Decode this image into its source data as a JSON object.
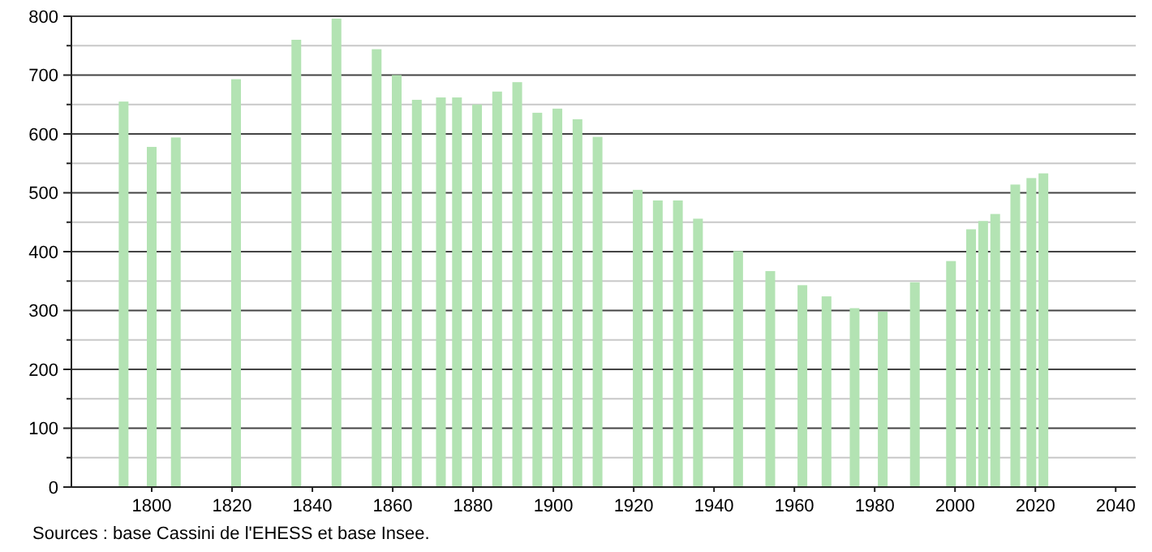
{
  "chart_data": {
    "type": "bar",
    "x": [
      1793,
      1800,
      1806,
      1821,
      1836,
      1846,
      1856,
      1861,
      1866,
      1872,
      1876,
      1881,
      1886,
      1891,
      1896,
      1901,
      1906,
      1911,
      1921,
      1926,
      1931,
      1936,
      1946,
      1954,
      1962,
      1968,
      1975,
      1982,
      1990,
      1999,
      2004,
      2007,
      2010,
      2015,
      2019,
      2022
    ],
    "values": [
      655,
      578,
      594,
      693,
      760,
      796,
      744,
      700,
      658,
      662,
      662,
      650,
      672,
      688,
      636,
      643,
      625,
      595,
      505,
      487,
      487,
      456,
      401,
      367,
      343,
      324,
      304,
      298,
      348,
      384,
      438,
      452,
      464,
      514,
      525,
      533
    ],
    "color": "#b3e3b3",
    "xlim": [
      1780,
      2045
    ],
    "xticks": [
      1800,
      1820,
      1840,
      1860,
      1880,
      1900,
      1920,
      1940,
      1960,
      1980,
      2000,
      2020,
      2040
    ],
    "ylim": [
      0,
      800
    ],
    "yticks": [
      0,
      {
        "value": 50,
        "label": null
      },
      100,
      {
        "value": 150,
        "label": null
      },
      200,
      {
        "value": 250,
        "label": null
      },
      300,
      {
        "value": 350,
        "label": null
      },
      400,
      {
        "value": 450,
        "label": null
      },
      500,
      {
        "value": 550,
        "label": null
      },
      600,
      {
        "value": 650,
        "label": null
      },
      700,
      {
        "value": 750,
        "label": null
      },
      800
    ],
    "grid": "y",
    "annotations": [
      "Sources : base Cassini de l'EHESS et base Insee."
    ]
  }
}
